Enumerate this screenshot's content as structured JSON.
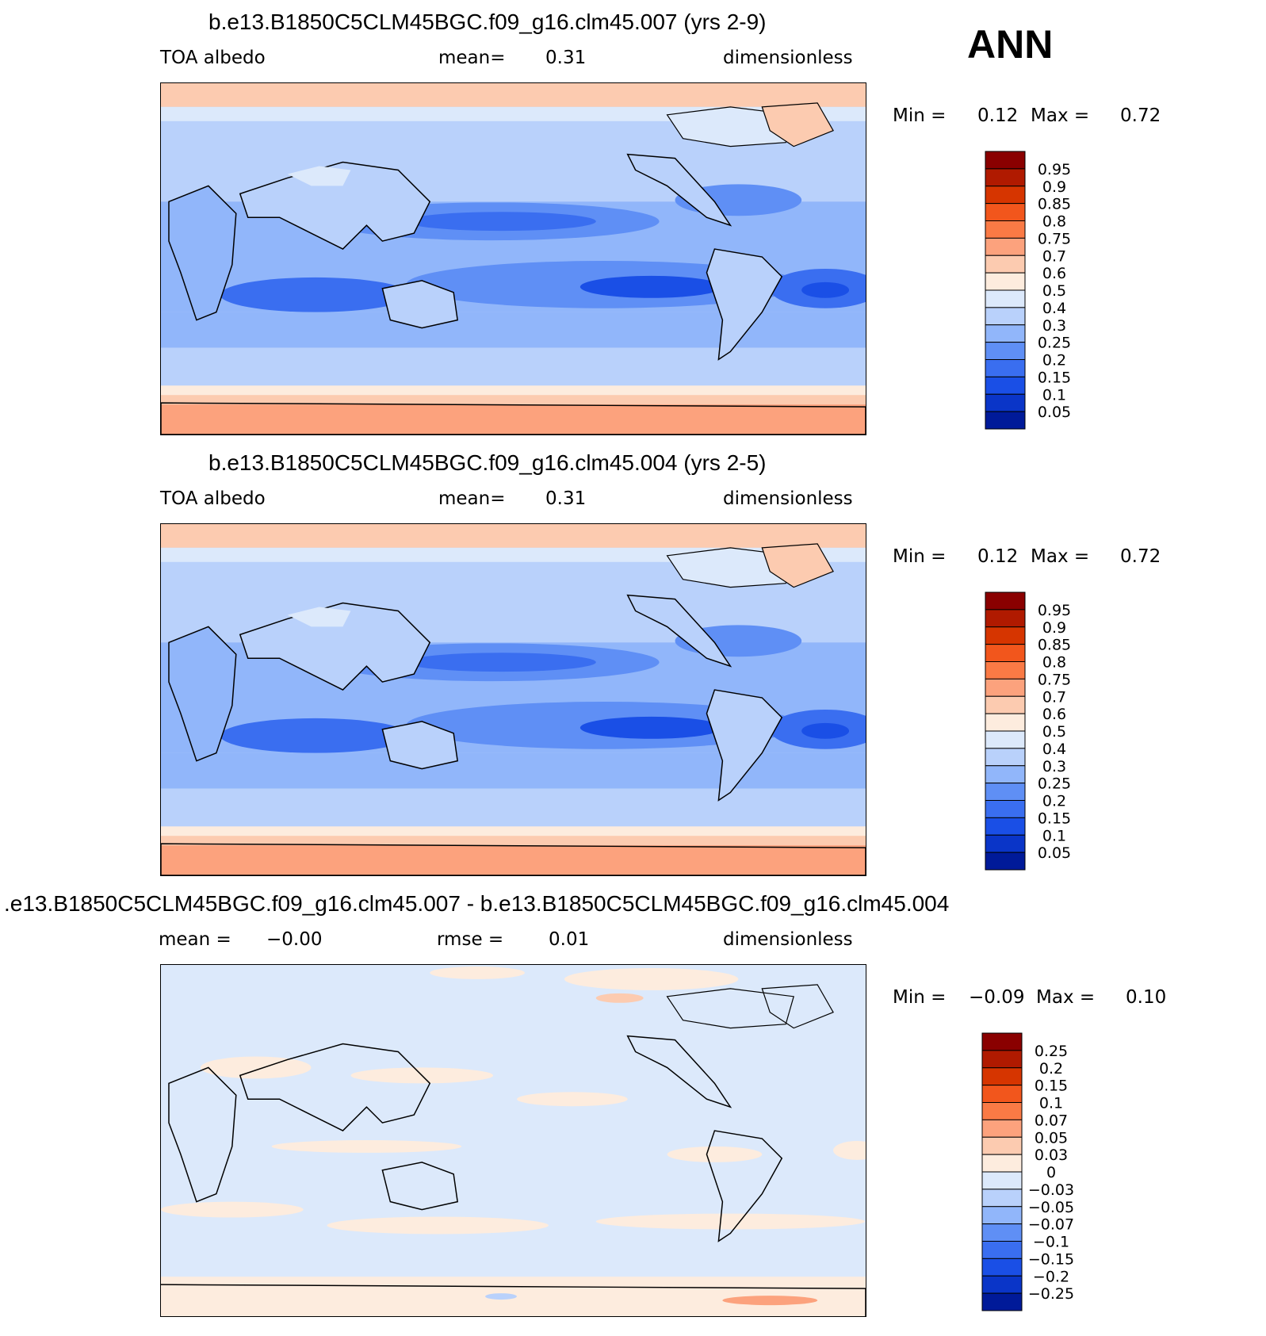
{
  "season": "ANN",
  "panels": [
    {
      "title": "b.e13.B1850C5CLM45BGC.f09_g16.clm45.007 (yrs 2-9)",
      "left_label": "TOA albedo",
      "center_label": "mean=",
      "center_value": "0.31",
      "right_label": "dimensionless",
      "min_label": "Min =",
      "min_value": "0.12",
      "max_label": "Max =",
      "max_value": "0.72",
      "colorbar": {
        "labels": [
          "0.95",
          "0.9",
          "0.85",
          "0.8",
          "0.75",
          "0.7",
          "0.6",
          "0.5",
          "0.4",
          "0.3",
          "0.25",
          "0.2",
          "0.15",
          "0.1",
          "0.05"
        ],
        "colors": [
          "#8a0000",
          "#b01a00",
          "#d63500",
          "#f2561c",
          "#fa7a45",
          "#fca27d",
          "#fccbb0",
          "#fdecde",
          "#dce9fb",
          "#b9d1fb",
          "#91b6fa",
          "#5f8ff5",
          "#3a6ef0",
          "#1a4fe6",
          "#0a35c8",
          "#001a99"
        ]
      },
      "map": {
        "type": "filled-contour",
        "field": "TOA albedo",
        "projection": "global cylindrical, centered on the Pacific"
      }
    },
    {
      "title": "b.e13.B1850C5CLM45BGC.f09_g16.clm45.004 (yrs 2-5)",
      "left_label": "TOA albedo",
      "center_label": "mean=",
      "center_value": "0.31",
      "right_label": "dimensionless",
      "min_label": "Min =",
      "min_value": "0.12",
      "max_label": "Max =",
      "max_value": "0.72",
      "colorbar": {
        "labels": [
          "0.95",
          "0.9",
          "0.85",
          "0.8",
          "0.75",
          "0.7",
          "0.6",
          "0.5",
          "0.4",
          "0.3",
          "0.25",
          "0.2",
          "0.15",
          "0.1",
          "0.05"
        ],
        "colors": [
          "#8a0000",
          "#b01a00",
          "#d63500",
          "#f2561c",
          "#fa7a45",
          "#fca27d",
          "#fccbb0",
          "#fdecde",
          "#dce9fb",
          "#b9d1fb",
          "#91b6fa",
          "#5f8ff5",
          "#3a6ef0",
          "#1a4fe6",
          "#0a35c8",
          "#001a99"
        ]
      },
      "map": {
        "type": "filled-contour",
        "field": "TOA albedo",
        "projection": "global cylindrical, centered on the Pacific"
      }
    },
    {
      "title": ".e13.B1850C5CLM45BGC.f09_g16.clm45.007 - b.e13.B1850C5CLM45BGC.f09_g16.clm45.004",
      "left_label": "mean =",
      "left_value": "−0.00",
      "center_label": "rmse =",
      "center_value": "0.01",
      "right_label": "dimensionless",
      "min_label": "Min =",
      "min_value": "−0.09",
      "max_label": "Max =",
      "max_value": "0.10",
      "colorbar": {
        "labels": [
          "0.25",
          "0.2",
          "0.15",
          "0.1",
          "0.07",
          "0.05",
          "0.03",
          "0",
          "−0.03",
          "−0.05",
          "−0.07",
          "−0.1",
          "−0.15",
          "−0.2",
          "−0.25"
        ],
        "colors": [
          "#8a0000",
          "#b01a00",
          "#d63500",
          "#f2561c",
          "#fa7a45",
          "#fca27d",
          "#fccbb0",
          "#fdecde",
          "#dce9fb",
          "#b9d1fb",
          "#91b6fa",
          "#5f8ff5",
          "#3a6ef0",
          "#1a4fe6",
          "#0a35c8",
          "#001a99"
        ]
      },
      "map": {
        "type": "filled-contour",
        "field": "difference",
        "projection": "global cylindrical, centered on the Pacific"
      }
    }
  ]
}
